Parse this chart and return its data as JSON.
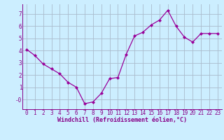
{
  "x": [
    0,
    1,
    2,
    3,
    4,
    5,
    6,
    7,
    8,
    9,
    10,
    11,
    12,
    13,
    14,
    15,
    16,
    17,
    18,
    19,
    20,
    21,
    22,
    23
  ],
  "y": [
    4.1,
    3.6,
    2.9,
    2.5,
    2.1,
    1.4,
    1.0,
    -0.35,
    -0.2,
    0.5,
    1.7,
    1.8,
    3.7,
    5.2,
    5.5,
    6.1,
    6.5,
    7.3,
    6.0,
    5.1,
    4.7,
    5.4,
    5.4,
    5.4
  ],
  "xlabel": "Windchill (Refroidissement éolien,°C)",
  "line_color": "#990099",
  "marker": "D",
  "bg_color": "#cceeff",
  "grid_color": "#aabbcc",
  "ylim": [
    -0.8,
    7.8
  ],
  "xlim": [
    -0.5,
    23.5
  ],
  "yticks": [
    0,
    1,
    2,
    3,
    4,
    5,
    6,
    7
  ],
  "ytick_labels": [
    "-0",
    "1",
    "2",
    "3",
    "4",
    "5",
    "6",
    "7"
  ],
  "xticks": [
    0,
    1,
    2,
    3,
    4,
    5,
    6,
    7,
    8,
    9,
    10,
    11,
    12,
    13,
    14,
    15,
    16,
    17,
    18,
    19,
    20,
    21,
    22,
    23
  ],
  "xtick_labels": [
    "0",
    "1",
    "2",
    "3",
    "4",
    "5",
    "6",
    "7",
    "8",
    "9",
    "10",
    "11",
    "12",
    "13",
    "14",
    "15",
    "16",
    "17",
    "18",
    "19",
    "20",
    "21",
    "22",
    "23"
  ],
  "tick_color": "#880088",
  "label_fontsize": 6,
  "tick_fontsize": 5.5
}
